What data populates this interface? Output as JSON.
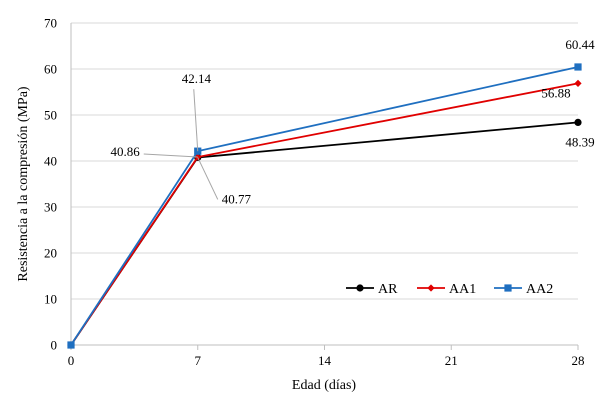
{
  "chart_data": {
    "type": "line",
    "xlabel": "Edad (días)",
    "ylabel": "Resistencia  a la compresión  (MPa)",
    "x_ticks": [
      0,
      7,
      14,
      21,
      28
    ],
    "y_ticks": [
      0,
      10,
      20,
      30,
      40,
      50,
      60,
      70
    ],
    "xlim": [
      0,
      28
    ],
    "ylim": [
      0,
      70
    ],
    "grid": "horizontal",
    "legend_position": "bottom-right",
    "series": [
      {
        "name": "AR",
        "color": "#000000",
        "marker": "circle",
        "x": [
          0,
          7,
          28
        ],
        "y": [
          0,
          40.77,
          48.39
        ]
      },
      {
        "name": "AA1",
        "color": "#e00000",
        "marker": "diamond",
        "x": [
          0,
          7,
          28
        ],
        "y": [
          0,
          40.86,
          56.88
        ]
      },
      {
        "name": "AA2",
        "color": "#1f6fc0",
        "marker": "square",
        "x": [
          0,
          7,
          28
        ],
        "y": [
          0,
          42.14,
          60.44
        ]
      }
    ],
    "data_labels": [
      {
        "text": "40.86",
        "series": "AA1",
        "x": 7,
        "y": 40.86,
        "leader": true
      },
      {
        "text": "42.14",
        "series": "AA2",
        "x": 7,
        "y": 42.14,
        "leader": true
      },
      {
        "text": "40.77",
        "series": "AR",
        "x": 7,
        "y": 40.77,
        "leader": true
      },
      {
        "text": "60.44",
        "series": "AA2",
        "x": 28,
        "y": 60.44,
        "leader": false
      },
      {
        "text": "56.88",
        "series": "AA1",
        "x": 28,
        "y": 56.88,
        "leader": false
      },
      {
        "text": "48.39",
        "series": "AR",
        "x": 28,
        "y": 48.39,
        "leader": false
      }
    ]
  }
}
